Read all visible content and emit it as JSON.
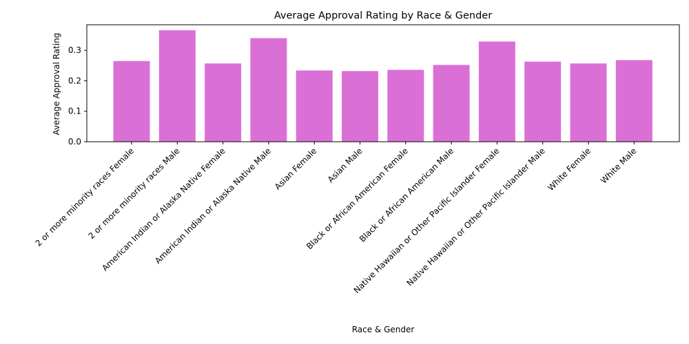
{
  "chart_data": {
    "type": "bar",
    "title": "Average Approval Rating by Race & Gender",
    "xlabel": "Race & Gender",
    "ylabel": "Average Approval Rating",
    "categories": [
      "2 or more minority races Female",
      "2 or more minority races Male",
      "American Indian or Alaska Native Female",
      "American Indian or Alaska Native Male",
      "Asian Female",
      "Asian Male",
      "Black or African American Female",
      "Black or African American Male",
      "Native Hawaiian or Other Pacific Islander Female",
      "Native Hawaiian or Other Pacific Islander Male",
      "White Female",
      "White Male"
    ],
    "values": [
      0.265,
      0.366,
      0.257,
      0.34,
      0.234,
      0.232,
      0.236,
      0.252,
      0.329,
      0.263,
      0.257,
      0.268
    ],
    "ylim": [
      0,
      0.384
    ],
    "yticks": [
      0.0,
      0.1,
      0.2,
      0.3
    ],
    "ytick_labels": [
      "0.0",
      "0.1",
      "0.2",
      "0.3"
    ],
    "grid": false,
    "bar_color": "#da70d6"
  }
}
